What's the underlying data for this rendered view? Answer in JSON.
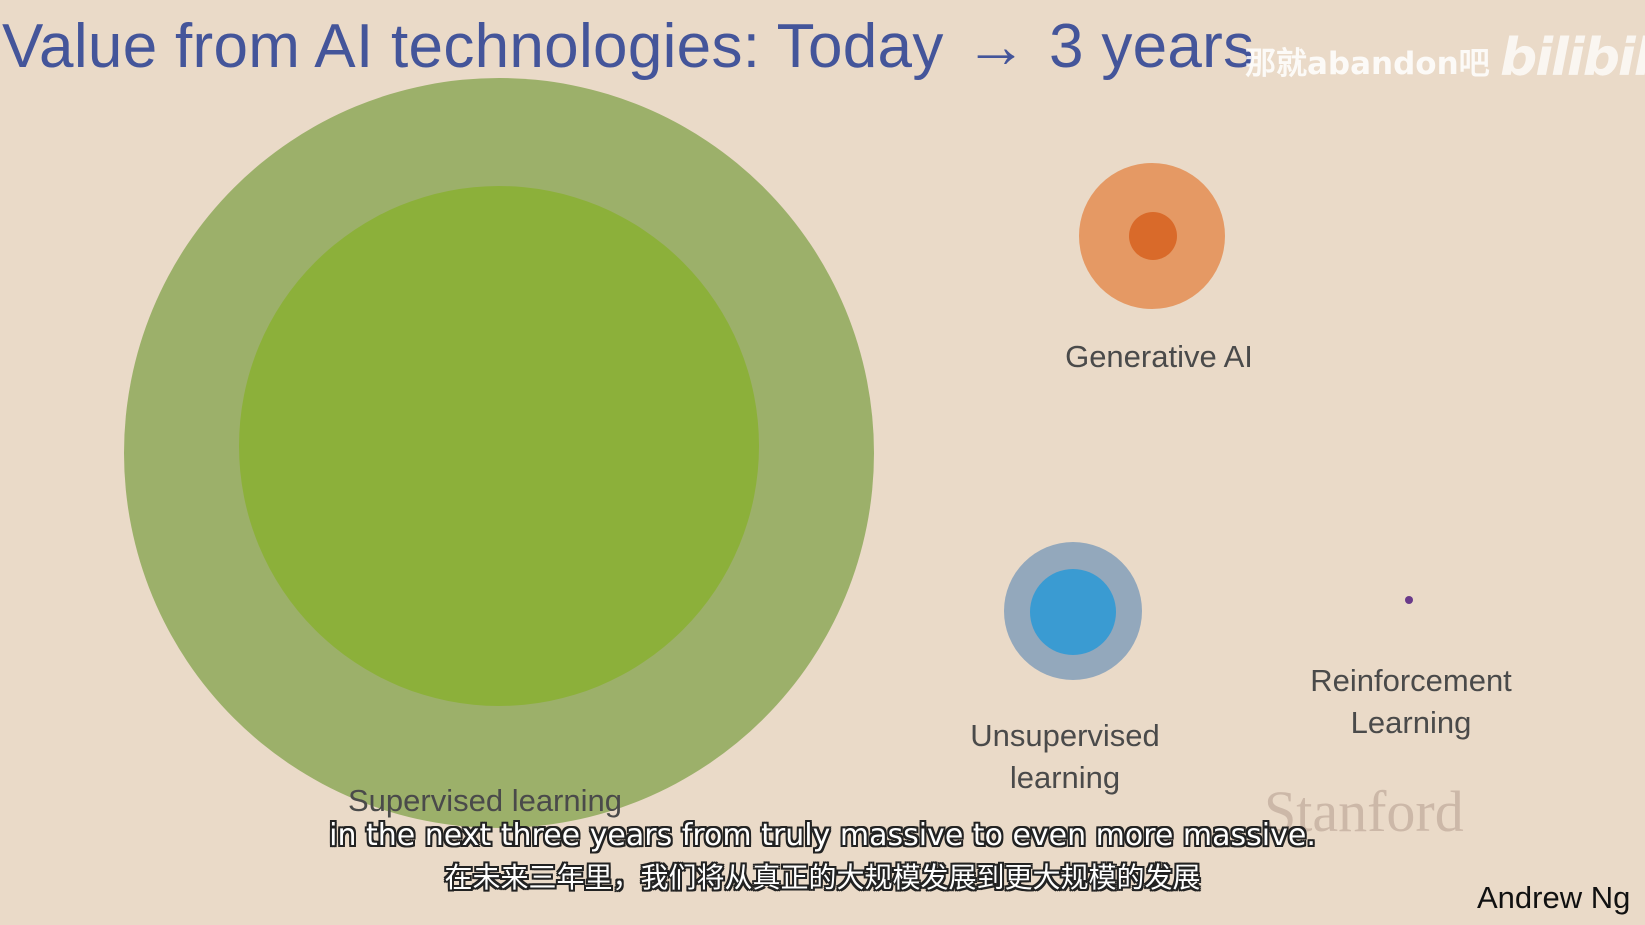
{
  "slide": {
    "title": "Value from AI technologies: Today",
    "title_arrow": "→",
    "title_suffix": "3 years",
    "author": "Andrew Ng",
    "institution_watermark": "Stanford"
  },
  "overlay": {
    "channel_watermark": "那就abandon吧",
    "platform_logo": "bilibili"
  },
  "subtitles": {
    "english": "in the next three years from truly massive to even more massive.",
    "chinese": "在未来三年里，我们将从真正的大规模发展到更大规模的发展"
  },
  "technologies": [
    {
      "name": "Supervised learning",
      "inner_color": "#8cb03a",
      "outer_color": "#9cb06a"
    },
    {
      "name": "Generative AI",
      "inner_color": "#d96a2a",
      "outer_color": "#e59964"
    },
    {
      "name": "Unsupervised\nlearning",
      "inner_color": "#3a9bd2",
      "outer_color": "#93a8bc"
    },
    {
      "name": "Reinforcement\nLearning",
      "inner_color": "#6a3a8a",
      "outer_color": "#8a5aa0"
    }
  ],
  "colors": {
    "background": "#eadac8",
    "title": "#44559a",
    "label": "#4a4a4a"
  }
}
